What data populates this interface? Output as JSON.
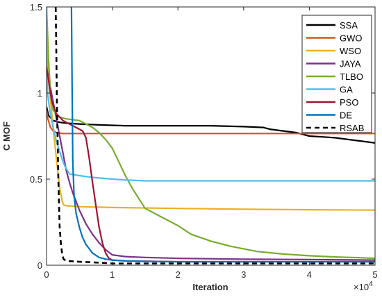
{
  "chart_data": {
    "type": "line",
    "title": "",
    "xlabel": "Iteration",
    "ylabel": "C MOF",
    "x_multiplier_label": "×10",
    "x_multiplier_exponent": "4",
    "xlim": [
      0,
      50000
    ],
    "ylim": [
      0,
      1.5
    ],
    "x_ticks": [
      0,
      10000,
      20000,
      30000,
      40000,
      50000
    ],
    "x_tick_labels": [
      "0",
      "1",
      "2",
      "3",
      "4",
      "5"
    ],
    "y_ticks": [
      0,
      0.5,
      1,
      1.5
    ],
    "y_tick_labels": [
      "0",
      "0.5",
      "1",
      "1.5"
    ],
    "grid": false,
    "legend_position": "top-right",
    "series": [
      {
        "name": "SSA",
        "color": "#000000",
        "dash": "solid",
        "x": [
          0,
          300,
          1000,
          2000,
          3000,
          5000,
          8000,
          12000,
          20000,
          25000,
          30000,
          33000,
          34000,
          36000,
          38000,
          40000,
          42000,
          44000,
          46000,
          48000,
          50000
        ],
        "y": [
          0.92,
          0.87,
          0.84,
          0.83,
          0.825,
          0.82,
          0.815,
          0.81,
          0.81,
          0.81,
          0.805,
          0.8,
          0.79,
          0.78,
          0.77,
          0.75,
          0.745,
          0.74,
          0.73,
          0.72,
          0.71
        ]
      },
      {
        "name": "GWO",
        "color": "#d95319",
        "dash": "solid",
        "x": [
          0,
          200,
          600,
          1000,
          1500,
          2500,
          50000
        ],
        "y": [
          0.9,
          0.85,
          0.8,
          0.78,
          0.77,
          0.765,
          0.765
        ]
      },
      {
        "name": "WSO",
        "color": "#edb120",
        "dash": "solid",
        "x": [
          0,
          150,
          500,
          1000,
          1500,
          2000,
          2400,
          2600,
          3000,
          5000,
          10000,
          20000,
          30000,
          40000,
          50000
        ],
        "y": [
          1.5,
          1.2,
          1.0,
          0.8,
          0.62,
          0.45,
          0.37,
          0.35,
          0.345,
          0.34,
          0.335,
          0.33,
          0.325,
          0.322,
          0.32
        ]
      },
      {
        "name": "JAYA",
        "color": "#7e2f8e",
        "dash": "solid",
        "x": [
          0,
          500,
          1000,
          1500,
          2000,
          2500,
          3000,
          3500,
          4000,
          5000,
          6000,
          7000,
          8000,
          9000,
          10000,
          12000,
          15000,
          20000,
          30000,
          40000,
          50000
        ],
        "y": [
          1.15,
          1.05,
          0.95,
          0.85,
          0.75,
          0.65,
          0.55,
          0.48,
          0.42,
          0.32,
          0.24,
          0.18,
          0.13,
          0.09,
          0.06,
          0.05,
          0.045,
          0.04,
          0.035,
          0.033,
          0.03
        ]
      },
      {
        "name": "TLBO",
        "color": "#77ac30",
        "dash": "solid",
        "x": [
          0,
          300,
          600,
          1000,
          2000,
          3000,
          4000,
          5000,
          6000,
          7000,
          8000,
          9000,
          10000,
          11000,
          12000,
          13000,
          14000,
          15000,
          17000,
          20000,
          22000,
          25000,
          28000,
          32000,
          36000,
          40000,
          44000,
          48000,
          50000
        ],
        "y": [
          1.5,
          1.2,
          1.0,
          0.9,
          0.86,
          0.85,
          0.845,
          0.84,
          0.82,
          0.8,
          0.77,
          0.73,
          0.68,
          0.6,
          0.52,
          0.45,
          0.39,
          0.33,
          0.29,
          0.23,
          0.18,
          0.14,
          0.11,
          0.08,
          0.065,
          0.055,
          0.048,
          0.043,
          0.04
        ]
      },
      {
        "name": "GA",
        "color": "#4dbeee",
        "dash": "solid",
        "x": [
          0,
          150,
          500,
          1000,
          1500,
          2000,
          2500,
          3000,
          3500,
          5000,
          7000,
          10000,
          12000,
          15000,
          20000,
          30000,
          40000,
          50000
        ],
        "y": [
          1.5,
          1.0,
          0.9,
          0.8,
          0.72,
          0.66,
          0.6,
          0.56,
          0.53,
          0.52,
          0.51,
          0.5,
          0.495,
          0.49,
          0.49,
          0.49,
          0.49,
          0.49
        ]
      },
      {
        "name": "PSO",
        "color": "#a2142f",
        "dash": "solid",
        "x": [
          0,
          400,
          800,
          1500,
          2500,
          3500,
          4500,
          5500,
          6000,
          6500,
          7000,
          7500,
          8000,
          8500,
          9000,
          9500,
          10000,
          12000,
          20000,
          30000,
          40000,
          50000
        ],
        "y": [
          1.15,
          1.05,
          0.95,
          0.88,
          0.84,
          0.82,
          0.8,
          0.78,
          0.74,
          0.62,
          0.48,
          0.35,
          0.22,
          0.13,
          0.07,
          0.04,
          0.03,
          0.025,
          0.02,
          0.02,
          0.02,
          0.02
        ]
      },
      {
        "name": "DE",
        "color": "#0072bd",
        "dash": "solid",
        "x": [
          3800,
          3900,
          4000,
          4200,
          4500,
          5000,
          5500,
          6000,
          7000,
          8000,
          9000,
          10000,
          12000,
          15000,
          20000,
          30000,
          40000,
          50000
        ],
        "y": [
          1.5,
          1.0,
          0.6,
          0.4,
          0.3,
          0.22,
          0.16,
          0.12,
          0.07,
          0.045,
          0.035,
          0.03,
          0.025,
          0.022,
          0.02,
          0.02,
          0.02,
          0.02
        ]
      },
      {
        "name": "RSAB",
        "color": "#000000",
        "dash": "dashed",
        "x": [
          1400,
          1500,
          1600,
          1700,
          1800,
          1900,
          2000,
          2200,
          2400,
          2600,
          3000,
          5000,
          8000,
          10000,
          15000,
          20000,
          30000,
          40000,
          50000
        ],
        "y": [
          1.5,
          1.2,
          0.9,
          0.7,
          0.5,
          0.35,
          0.22,
          0.12,
          0.06,
          0.035,
          0.025,
          0.02,
          0.015,
          0.01,
          0.01,
          0.01,
          0.01,
          0.01,
          0.01
        ]
      }
    ]
  }
}
